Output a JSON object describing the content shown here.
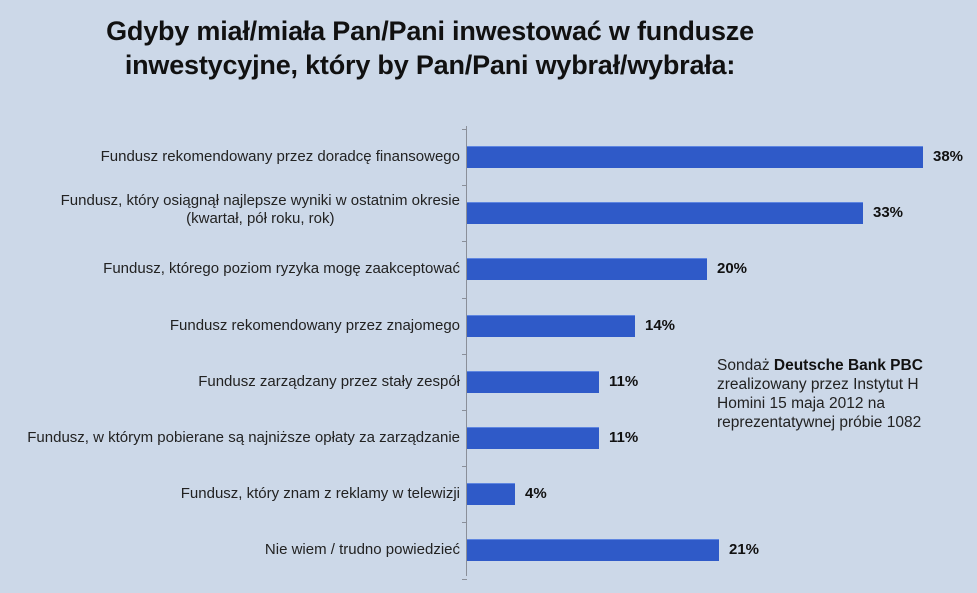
{
  "chart_data": {
    "type": "bar",
    "orientation": "horizontal",
    "title": "Gdyby miał/miała Pan/Pani inwestować w fundusze inwestycyjne, który by Pan/Pani wybrał/wybrała:",
    "title_lines": [
      "Gdyby miał/miała Pan/Pani inwestować w fundusze",
      "inwestycyjne, który by Pan/Pani wybrał/wybrała:"
    ],
    "categories": [
      "Fundusz rekomendowany przez doradcę finansowego",
      "Fundusz, który osiągnął najlepsze wyniki w ostatnim okresie (kwartał, pół roku, rok)",
      "Fundusz, którego poziom ryzyka mogę zaakceptować",
      "Fundusz rekomendowany przez znajomego",
      "Fundusz zarządzany przez stały zespół",
      "Fundusz, w którym pobierane są najniższe opłaty za zarządzanie",
      "Fundusz, który znam z reklamy w telewizji",
      "Nie wiem / trudno powiedzieć"
    ],
    "values": [
      38,
      33,
      20,
      14,
      11,
      11,
      4,
      21
    ],
    "value_labels": [
      "38%",
      "33%",
      "20%",
      "14%",
      "11%",
      "11%",
      "4%",
      "21%"
    ],
    "xlabel": "",
    "ylabel": "",
    "unit": "%",
    "grid": false,
    "legend": null,
    "bar_color": "#2f5ac8",
    "background_color": "#ccd8e8"
  },
  "rows": [
    {
      "label_lines": [
        "Fundusz rekomendowany przez doradcę finansowego"
      ],
      "value": "38%"
    },
    {
      "label_lines": [
        "Fundusz, który osiągnął najlepsze wyniki w ostatnim okresie",
        "(kwartał, pół roku, rok)"
      ],
      "value": "33%"
    },
    {
      "label_lines": [
        "Fundusz, którego poziom ryzyka mogę zaakceptować"
      ],
      "value": "20%"
    },
    {
      "label_lines": [
        "Fundusz rekomendowany przez znajomego"
      ],
      "value": "14%"
    },
    {
      "label_lines": [
        "Fundusz zarządzany przez stały zespół"
      ],
      "value": "11%"
    },
    {
      "label_lines": [
        "Fundusz, w którym pobierane są najniższe opłaty za zarządzanie"
      ],
      "value": "11%"
    },
    {
      "label_lines": [
        "Fundusz, który znam z reklamy w telewizji"
      ],
      "value": "4%"
    },
    {
      "label_lines": [
        "Nie wiem / trudno powiedzieć"
      ],
      "value": "21%"
    }
  ],
  "annotation": {
    "prefix": "Sondaż ",
    "bold": "Deutsche Bank PBC",
    "lines": [
      "zrealizowany przez  Instytut H",
      "Homini 15 maja 2012 na",
      "reprezentatywnej próbie 1082"
    ]
  }
}
